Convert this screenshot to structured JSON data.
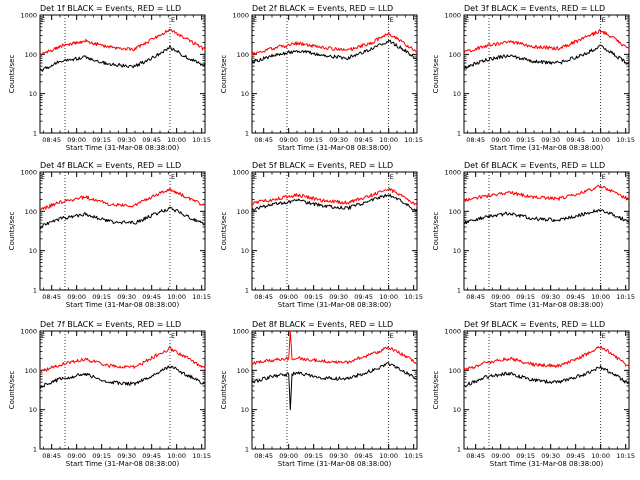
{
  "chart_data": [
    {
      "type": "line",
      "title": "Det 1f BLACK = Events, RED = LLD",
      "xlabel": "Start Time (31-Mar-08 08:38:00)",
      "ylabel": "Counts/sec",
      "yscale": "log",
      "ylim": [
        1,
        1000
      ],
      "xlim": [
        "08:38",
        "10:17"
      ],
      "x_ticks": [
        "08:45",
        "09:00",
        "09:15",
        "09:30",
        "09:45",
        "10:00",
        "10:15"
      ],
      "y_ticks": [
        "1",
        "10",
        "100",
        "1000"
      ],
      "markers": [
        {
          "time": "08:38",
          "label": "E"
        },
        {
          "time": "09:56",
          "label": "E"
        }
      ],
      "dotted_lines": [
        "08:53",
        "09:56"
      ],
      "x": [
        "08:38",
        "08:50",
        "09:05",
        "09:20",
        "09:35",
        "09:47",
        "09:56",
        "10:05",
        "10:17"
      ],
      "series": [
        {
          "color": "#ff0000",
          "values": [
            95,
            160,
            220,
            150,
            135,
            260,
            430,
            260,
            130
          ]
        },
        {
          "color": "#000000",
          "values": [
            38,
            65,
            85,
            55,
            50,
            90,
            150,
            90,
            50
          ]
        }
      ]
    },
    {
      "type": "line",
      "title": "Det 2f BLACK = Events, RED = LLD",
      "xlabel": "Start Time (31-Mar-08 08:38:00)",
      "ylabel": "Counts/sec",
      "yscale": "log",
      "ylim": [
        1,
        1000
      ],
      "xlim": [
        "08:38",
        "10:17"
      ],
      "x_ticks": [
        "08:45",
        "09:00",
        "09:15",
        "09:30",
        "09:45",
        "10:00",
        "10:15"
      ],
      "y_ticks": [
        "1",
        "10",
        "100",
        "1000"
      ],
      "markers": [
        {
          "time": "08:38",
          "label": "E"
        },
        {
          "time": "10:00",
          "label": "E"
        }
      ],
      "dotted_lines": [
        "08:59",
        "10:00"
      ],
      "x": [
        "08:38",
        "08:50",
        "09:05",
        "09:20",
        "09:35",
        "09:50",
        "10:00",
        "10:08",
        "10:17"
      ],
      "series": [
        {
          "color": "#ff0000",
          "values": [
            100,
            140,
            190,
            150,
            125,
            200,
            340,
            210,
            110
          ]
        },
        {
          "color": "#000000",
          "values": [
            65,
            90,
            125,
            95,
            80,
            140,
            220,
            140,
            75
          ]
        }
      ]
    },
    {
      "type": "line",
      "title": "Det 3f BLACK = Events, RED = LLD",
      "xlabel": "Start Time (31-Mar-08 08:38:00)",
      "ylabel": "Counts/sec",
      "yscale": "log",
      "ylim": [
        1,
        1000
      ],
      "xlim": [
        "08:38",
        "10:17"
      ],
      "x_ticks": [
        "08:45",
        "09:00",
        "09:15",
        "09:30",
        "09:45",
        "10:00",
        "10:15"
      ],
      "y_ticks": [
        "1",
        "10",
        "100",
        "1000"
      ],
      "markers": [
        {
          "time": "08:38",
          "label": "E"
        },
        {
          "time": "10:00",
          "label": "E"
        }
      ],
      "dotted_lines": [
        "08:53",
        "10:00"
      ],
      "x": [
        "08:38",
        "08:50",
        "09:05",
        "09:20",
        "09:35",
        "09:50",
        "10:00",
        "10:08",
        "10:17"
      ],
      "series": [
        {
          "color": "#ff0000",
          "values": [
            110,
            160,
            210,
            155,
            140,
            260,
            400,
            260,
            130
          ]
        },
        {
          "color": "#000000",
          "values": [
            45,
            70,
            95,
            65,
            60,
            100,
            160,
            100,
            55
          ]
        }
      ]
    },
    {
      "type": "line",
      "title": "Det 4f BLACK = Events, RED = LLD",
      "xlabel": "Start Time (31-Mar-08 08:38:00)",
      "ylabel": "Counts/sec",
      "yscale": "log",
      "ylim": [
        1,
        1000
      ],
      "xlim": [
        "08:38",
        "10:17"
      ],
      "x_ticks": [
        "08:45",
        "09:00",
        "09:15",
        "09:30",
        "09:45",
        "10:00",
        "10:15"
      ],
      "y_ticks": [
        "1",
        "10",
        "100",
        "1000"
      ],
      "markers": [
        {
          "time": "08:38",
          "label": "E"
        },
        {
          "time": "09:56",
          "label": "E"
        }
      ],
      "dotted_lines": [
        "08:53",
        "09:56"
      ],
      "x": [
        "08:38",
        "08:50",
        "09:05",
        "09:20",
        "09:35",
        "09:47",
        "09:56",
        "10:05",
        "10:17"
      ],
      "series": [
        {
          "color": "#ff0000",
          "values": [
            110,
            170,
            230,
            150,
            140,
            260,
            360,
            240,
            140
          ]
        },
        {
          "color": "#000000",
          "values": [
            40,
            65,
            85,
            55,
            50,
            85,
            120,
            80,
            45
          ]
        }
      ]
    },
    {
      "type": "line",
      "title": "Det 5f BLACK = Events, RED = LLD",
      "xlabel": "Start Time (31-Mar-08 08:38:00)",
      "ylabel": "Counts/sec",
      "yscale": "log",
      "ylim": [
        1,
        1000
      ],
      "xlim": [
        "08:38",
        "10:17"
      ],
      "x_ticks": [
        "08:45",
        "09:00",
        "09:15",
        "09:30",
        "09:45",
        "10:00",
        "10:15"
      ],
      "y_ticks": [
        "1",
        "10",
        "100",
        "1000"
      ],
      "markers": [
        {
          "time": "08:38",
          "label": "E"
        },
        {
          "time": "10:00",
          "label": "E"
        }
      ],
      "dotted_lines": [
        "08:59",
        "10:00"
      ],
      "x": [
        "08:38",
        "08:50",
        "09:05",
        "09:20",
        "09:35",
        "09:50",
        "10:00",
        "10:08",
        "10:17"
      ],
      "series": [
        {
          "color": "#ff0000",
          "values": [
            160,
            200,
            260,
            190,
            165,
            260,
            370,
            250,
            140
          ]
        },
        {
          "color": "#000000",
          "values": [
            110,
            150,
            190,
            140,
            120,
            190,
            270,
            180,
            100
          ]
        }
      ]
    },
    {
      "type": "line",
      "title": "Det 6f BLACK = Events, RED = LLD",
      "xlabel": "Start Time (31-Mar-08 08:38:00)",
      "ylabel": "Counts/sec",
      "yscale": "log",
      "ylim": [
        1,
        1000
      ],
      "xlim": [
        "08:38",
        "10:17"
      ],
      "x_ticks": [
        "08:45",
        "09:00",
        "09:15",
        "09:30",
        "09:45",
        "10:00",
        "10:15"
      ],
      "y_ticks": [
        "1",
        "10",
        "100",
        "1000"
      ],
      "markers": [
        {
          "time": "08:38",
          "label": "E"
        },
        {
          "time": "10:00",
          "label": "E"
        }
      ],
      "dotted_lines": [
        "08:53",
        "10:00"
      ],
      "x": [
        "08:38",
        "08:50",
        "09:05",
        "09:20",
        "09:35",
        "09:50",
        "10:00",
        "10:08",
        "10:17"
      ],
      "series": [
        {
          "color": "#ff0000",
          "values": [
            190,
            240,
            300,
            230,
            210,
            310,
            440,
            310,
            200
          ]
        },
        {
          "color": "#000000",
          "values": [
            50,
            70,
            90,
            65,
            60,
            85,
            110,
            80,
            55
          ]
        }
      ]
    },
    {
      "type": "line",
      "title": "Det 7f BLACK = Events, RED = LLD",
      "xlabel": "Start Time (31-Mar-08 08:38:00)",
      "ylabel": "Counts/sec",
      "yscale": "log",
      "ylim": [
        1,
        1000
      ],
      "xlim": [
        "08:38",
        "10:17"
      ],
      "x_ticks": [
        "08:45",
        "09:00",
        "09:15",
        "09:30",
        "09:45",
        "10:00",
        "10:15"
      ],
      "y_ticks": [
        "1",
        "10",
        "100",
        "1000"
      ],
      "markers": [
        {
          "time": "08:38",
          "label": "E"
        },
        {
          "time": "09:56",
          "label": "E"
        }
      ],
      "dotted_lines": [
        "08:53",
        "09:56"
      ],
      "x": [
        "08:38",
        "08:50",
        "09:05",
        "09:20",
        "09:35",
        "09:47",
        "09:56",
        "10:05",
        "10:17"
      ],
      "series": [
        {
          "color": "#ff0000",
          "values": [
            90,
            140,
            190,
            130,
            120,
            230,
            360,
            220,
            110
          ]
        },
        {
          "color": "#000000",
          "values": [
            38,
            60,
            80,
            50,
            45,
            80,
            130,
            80,
            45
          ]
        }
      ]
    },
    {
      "type": "line",
      "title": "Det 8f BLACK = Events, RED = LLD",
      "xlabel": "Start Time (31-Mar-08 08:38:00)",
      "ylabel": "Counts/sec",
      "yscale": "log",
      "ylim": [
        1,
        1000
      ],
      "xlim": [
        "08:38",
        "10:17"
      ],
      "x_ticks": [
        "08:45",
        "09:00",
        "09:15",
        "09:30",
        "09:45",
        "10:00",
        "10:15"
      ],
      "y_ticks": [
        "1",
        "10",
        "100",
        "1000"
      ],
      "markers": [
        {
          "time": "08:38",
          "label": "E"
        },
        {
          "time": "10:00",
          "label": "E"
        }
      ],
      "dotted_lines": [
        "08:59",
        "10:00"
      ],
      "x": [
        "08:38",
        "08:50",
        "09:00",
        "09:01",
        "09:02",
        "09:05",
        "09:20",
        "09:35",
        "09:50",
        "10:00",
        "10:08",
        "10:17"
      ],
      "series": [
        {
          "color": "#ff0000",
          "values": [
            150,
            180,
            200,
            1000,
            200,
            210,
            170,
            160,
            260,
            380,
            260,
            150
          ]
        },
        {
          "color": "#000000",
          "values": [
            50,
            70,
            80,
            10,
            80,
            85,
            65,
            60,
            100,
            150,
            100,
            60
          ]
        }
      ]
    },
    {
      "type": "line",
      "title": "Det 9f BLACK = Events, RED = LLD",
      "xlabel": "Start Time (31-Mar-08 08:38:00)",
      "ylabel": "Counts/sec",
      "yscale": "log",
      "ylim": [
        1,
        1000
      ],
      "xlim": [
        "08:38",
        "10:17"
      ],
      "x_ticks": [
        "08:45",
        "09:00",
        "09:15",
        "09:30",
        "09:45",
        "10:00",
        "10:15"
      ],
      "y_ticks": [
        "1",
        "10",
        "100",
        "1000"
      ],
      "markers": [
        {
          "time": "08:38",
          "label": "E"
        },
        {
          "time": "10:00",
          "label": "E"
        }
      ],
      "dotted_lines": [
        "08:53",
        "10:00"
      ],
      "x": [
        "08:38",
        "08:50",
        "09:05",
        "09:20",
        "09:35",
        "09:50",
        "10:00",
        "10:08",
        "10:17"
      ],
      "series": [
        {
          "color": "#ff0000",
          "values": [
            100,
            150,
            200,
            140,
            130,
            240,
            400,
            240,
            120
          ]
        },
        {
          "color": "#000000",
          "values": [
            40,
            65,
            85,
            55,
            50,
            80,
            120,
            80,
            45
          ]
        }
      ]
    }
  ]
}
